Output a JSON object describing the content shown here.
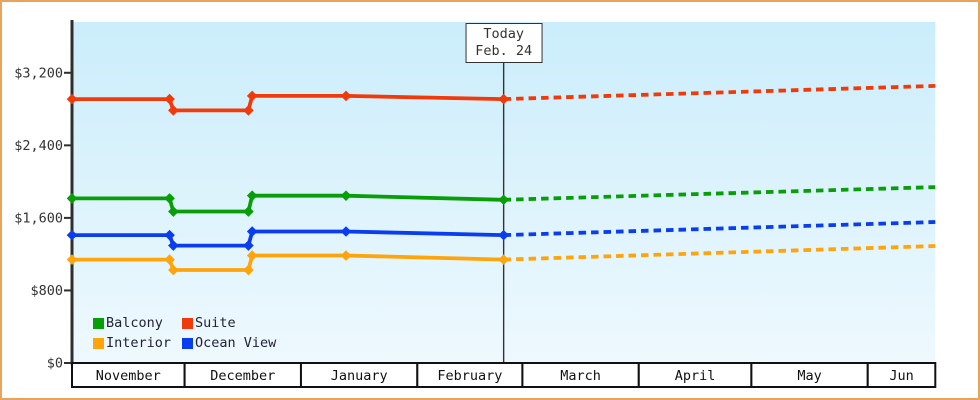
{
  "window": {
    "title": "Cabin price history and forecast chart"
  },
  "chart_data": {
    "type": "line",
    "title": "",
    "xlabel": "",
    "ylabel": "",
    "y_ticks": [
      "$0",
      "$800",
      "$1,600",
      "$2,400",
      "$3,200"
    ],
    "y_tick_values": [
      0,
      800,
      1600,
      2400,
      3200
    ],
    "ylim": [
      0,
      3760
    ],
    "grid": false,
    "legend_position": "bottom-left",
    "x_months": [
      {
        "label": "November",
        "days": 30
      },
      {
        "label": "December",
        "days": 31
      },
      {
        "label": "January",
        "days": 31
      },
      {
        "label": "February",
        "days": 28
      },
      {
        "label": "March",
        "days": 31
      },
      {
        "label": "April",
        "days": 30
      },
      {
        "label": "May",
        "days": 31
      },
      {
        "label": "Jun",
        "days": 18
      }
    ],
    "today": {
      "line1": "Today",
      "line2": "Feb. 24",
      "day": 115
    },
    "series": [
      {
        "name": "Suite",
        "color": "#f2390a",
        "history": [
          [
            0,
            2910
          ],
          [
            26,
            2910
          ],
          [
            27,
            2785
          ],
          [
            47,
            2785
          ],
          [
            48,
            2945
          ],
          [
            73,
            2945
          ],
          [
            115,
            2910
          ]
        ],
        "forecast": [
          [
            115,
            2910
          ],
          [
            230,
            3055
          ]
        ]
      },
      {
        "name": "Balcony",
        "color": "#089e08",
        "history": [
          [
            0,
            1815
          ],
          [
            26,
            1815
          ],
          [
            27,
            1670
          ],
          [
            47,
            1670
          ],
          [
            48,
            1845
          ],
          [
            73,
            1845
          ],
          [
            115,
            1800
          ]
        ],
        "forecast": [
          [
            115,
            1800
          ],
          [
            230,
            1940
          ]
        ]
      },
      {
        "name": "Ocean View",
        "color": "#0a3cf0",
        "history": [
          [
            0,
            1410
          ],
          [
            26,
            1410
          ],
          [
            27,
            1295
          ],
          [
            47,
            1295
          ],
          [
            48,
            1450
          ],
          [
            73,
            1450
          ],
          [
            115,
            1410
          ]
        ],
        "forecast": [
          [
            115,
            1410
          ],
          [
            230,
            1555
          ]
        ]
      },
      {
        "name": "Interior",
        "color": "#ffa40a",
        "history": [
          [
            0,
            1140
          ],
          [
            26,
            1140
          ],
          [
            27,
            1025
          ],
          [
            47,
            1025
          ],
          [
            48,
            1185
          ],
          [
            73,
            1185
          ],
          [
            115,
            1140
          ]
        ],
        "forecast": [
          [
            115,
            1140
          ],
          [
            230,
            1290
          ]
        ]
      }
    ],
    "legend_order": [
      "Balcony",
      "Suite",
      "Interior",
      "Ocean View"
    ],
    "colors": {
      "page_border": "#e9a45b",
      "plot_bg_top": "#cbedfb",
      "plot_bg_bottom": "#eef9fe",
      "axis": "#2f2f2f",
      "table_border": "#111111",
      "table_fill": "#ffffff",
      "tick_label": "#333333",
      "month_label": "#111111",
      "today_line": "#333333"
    }
  }
}
